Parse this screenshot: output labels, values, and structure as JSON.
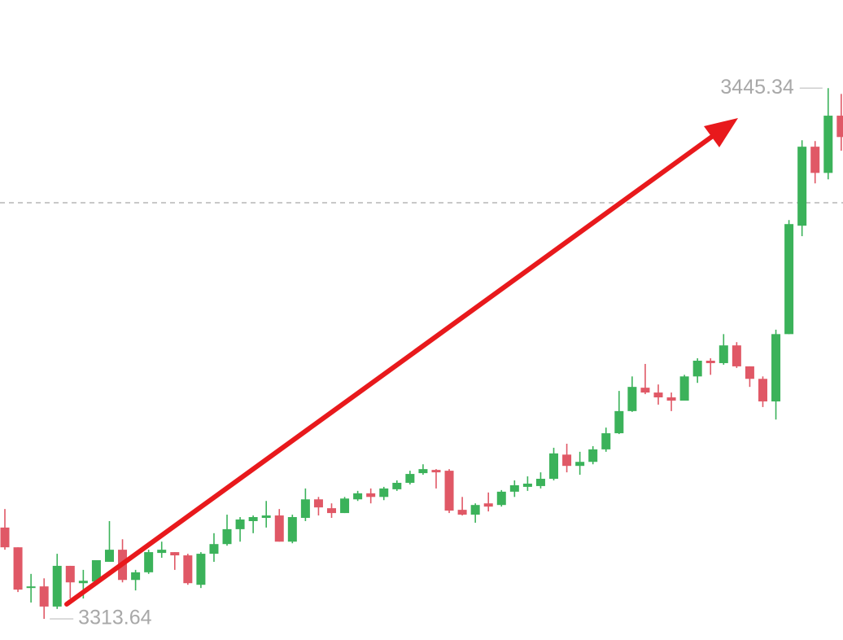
{
  "chart_data": {
    "type": "candlestick",
    "open": [
      3336.3,
      3331.4,
      3321.3,
      3321.7,
      3316.7,
      3326.8,
      3322.5,
      3322.9,
      3327.8,
      3330.8,
      3323.3,
      3325.2,
      3330.0,
      3330.2,
      3329.4,
      3322.1,
      3329.8,
      3332.2,
      3335.9,
      3337.9,
      3338.7,
      3339.3,
      3332.8,
      3338.7,
      3343.3,
      3341.1,
      3339.9,
      3343.3,
      3344.8,
      3343.9,
      3345.8,
      3347.4,
      3349.8,
      3350.6,
      3350.4,
      3340.7,
      3339.5,
      3342.3,
      3341.9,
      3345.2,
      3346.4,
      3346.6,
      3348.4,
      3354.4,
      3351.6,
      3352.6,
      3355.7,
      3359.7,
      3365.2,
      3371.0,
      3369.8,
      3368.6,
      3367.8,
      3373.8,
      3377.7,
      3377.1,
      3381.5,
      3376.3,
      3373.2,
      3367.6,
      3384.3,
      3411.2,
      3430.8,
      3424.3,
      3438.5
    ],
    "high": [
      3340.9,
      3331.4,
      3324.8,
      3323.7,
      3329.8,
      3326.8,
      3325.8,
      3328.2,
      3337.9,
      3333.4,
      3325.8,
      3330.8,
      3332.8,
      3330.2,
      3329.8,
      3330.2,
      3334.9,
      3339.5,
      3338.9,
      3339.3,
      3342.9,
      3340.9,
      3339.5,
      3346.0,
      3343.9,
      3342.3,
      3343.9,
      3345.4,
      3346.0,
      3346.4,
      3348.0,
      3350.4,
      3352.0,
      3350.8,
      3350.8,
      3343.9,
      3342.3,
      3345.0,
      3345.6,
      3348.0,
      3349.0,
      3350.0,
      3356.1,
      3357.1,
      3355.1,
      3356.5,
      3361.1,
      3370.2,
      3373.8,
      3376.9,
      3371.8,
      3369.8,
      3374.2,
      3378.3,
      3378.3,
      3384.3,
      3382.3,
      3376.3,
      3373.8,
      3385.4,
      3412.6,
      3432.4,
      3432.2,
      3445.34,
      3443.9
    ],
    "low": [
      3330.8,
      3320.3,
      3317.7,
      3313.64,
      3316.1,
      3318.7,
      3318.7,
      3322.5,
      3327.8,
      3322.7,
      3320.7,
      3324.8,
      3328.8,
      3325.8,
      3322.1,
      3321.3,
      3327.8,
      3331.8,
      3332.8,
      3334.9,
      3336.3,
      3332.8,
      3332.4,
      3337.9,
      3339.3,
      3338.7,
      3339.9,
      3342.9,
      3342.3,
      3343.1,
      3345.4,
      3347.0,
      3349.4,
      3346.0,
      3339.9,
      3339.3,
      3337.5,
      3340.3,
      3341.5,
      3343.9,
      3345.4,
      3346.0,
      3348.0,
      3350.0,
      3349.4,
      3352.0,
      3355.1,
      3359.5,
      3365.0,
      3369.4,
      3366.8,
      3365.2,
      3367.8,
      3372.2,
      3374.2,
      3376.7,
      3375.9,
      3371.2,
      3366.2,
      3363.1,
      3384.3,
      3408.6,
      3421.7,
      3422.7,
      3429.8
    ],
    "close": [
      3331.4,
      3320.9,
      3321.7,
      3316.7,
      3326.8,
      3322.7,
      3323.1,
      3328.2,
      3330.8,
      3323.3,
      3325.2,
      3330.2,
      3330.8,
      3329.4,
      3322.5,
      3329.8,
      3332.2,
      3335.9,
      3338.3,
      3338.9,
      3339.3,
      3332.8,
      3338.9,
      3343.3,
      3341.3,
      3339.9,
      3343.5,
      3344.8,
      3343.9,
      3346.0,
      3347.4,
      3349.6,
      3350.8,
      3350.0,
      3340.5,
      3339.5,
      3341.9,
      3341.5,
      3345.2,
      3346.8,
      3347.2,
      3348.4,
      3354.7,
      3351.6,
      3352.6,
      3355.7,
      3359.7,
      3365.2,
      3371.2,
      3369.8,
      3368.6,
      3367.8,
      3373.8,
      3377.7,
      3377.1,
      3381.5,
      3376.3,
      3373.2,
      3367.6,
      3384.3,
      3411.6,
      3430.8,
      3424.3,
      3438.5,
      3433.2
    ],
    "up_color": "#3bb25a",
    "down_color": "#e05866",
    "ylim": [
      3308.4,
      3467.2
    ],
    "reference_line": 3416.9,
    "annotations": [
      {
        "text": "3445.34",
        "value": 3445.34,
        "side": "left",
        "candle": 63
      },
      {
        "text": "3313.64",
        "value": 3313.64,
        "side": "right",
        "candle": 3
      }
    ]
  }
}
